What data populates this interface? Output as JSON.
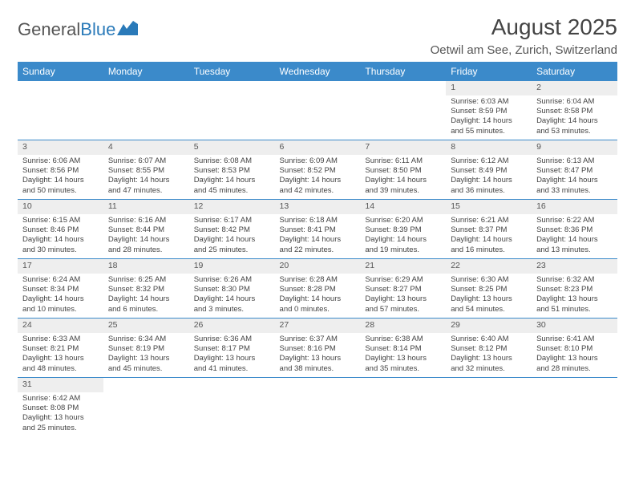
{
  "logo": {
    "text1": "General",
    "text2": "Blue"
  },
  "title": "August 2025",
  "subtitle": "Oetwil am See, Zurich, Switzerland",
  "colors": {
    "header_bg": "#3b8aca",
    "header_text": "#ffffff",
    "cell_divider": "#3b8aca",
    "daynum_bg": "#eeeeee",
    "text": "#444444",
    "logo_gray": "#555555",
    "logo_blue": "#2a7ab9"
  },
  "weekdays": [
    "Sunday",
    "Monday",
    "Tuesday",
    "Wednesday",
    "Thursday",
    "Friday",
    "Saturday"
  ],
  "column_width_pct": 14.28,
  "weeks": [
    [
      null,
      null,
      null,
      null,
      null,
      {
        "n": "1",
        "sr": "Sunrise: 6:03 AM",
        "ss": "Sunset: 8:59 PM",
        "dl1": "Daylight: 14 hours",
        "dl2": "and 55 minutes."
      },
      {
        "n": "2",
        "sr": "Sunrise: 6:04 AM",
        "ss": "Sunset: 8:58 PM",
        "dl1": "Daylight: 14 hours",
        "dl2": "and 53 minutes."
      }
    ],
    [
      {
        "n": "3",
        "sr": "Sunrise: 6:06 AM",
        "ss": "Sunset: 8:56 PM",
        "dl1": "Daylight: 14 hours",
        "dl2": "and 50 minutes."
      },
      {
        "n": "4",
        "sr": "Sunrise: 6:07 AM",
        "ss": "Sunset: 8:55 PM",
        "dl1": "Daylight: 14 hours",
        "dl2": "and 47 minutes."
      },
      {
        "n": "5",
        "sr": "Sunrise: 6:08 AM",
        "ss": "Sunset: 8:53 PM",
        "dl1": "Daylight: 14 hours",
        "dl2": "and 45 minutes."
      },
      {
        "n": "6",
        "sr": "Sunrise: 6:09 AM",
        "ss": "Sunset: 8:52 PM",
        "dl1": "Daylight: 14 hours",
        "dl2": "and 42 minutes."
      },
      {
        "n": "7",
        "sr": "Sunrise: 6:11 AM",
        "ss": "Sunset: 8:50 PM",
        "dl1": "Daylight: 14 hours",
        "dl2": "and 39 minutes."
      },
      {
        "n": "8",
        "sr": "Sunrise: 6:12 AM",
        "ss": "Sunset: 8:49 PM",
        "dl1": "Daylight: 14 hours",
        "dl2": "and 36 minutes."
      },
      {
        "n": "9",
        "sr": "Sunrise: 6:13 AM",
        "ss": "Sunset: 8:47 PM",
        "dl1": "Daylight: 14 hours",
        "dl2": "and 33 minutes."
      }
    ],
    [
      {
        "n": "10",
        "sr": "Sunrise: 6:15 AM",
        "ss": "Sunset: 8:46 PM",
        "dl1": "Daylight: 14 hours",
        "dl2": "and 30 minutes."
      },
      {
        "n": "11",
        "sr": "Sunrise: 6:16 AM",
        "ss": "Sunset: 8:44 PM",
        "dl1": "Daylight: 14 hours",
        "dl2": "and 28 minutes."
      },
      {
        "n": "12",
        "sr": "Sunrise: 6:17 AM",
        "ss": "Sunset: 8:42 PM",
        "dl1": "Daylight: 14 hours",
        "dl2": "and 25 minutes."
      },
      {
        "n": "13",
        "sr": "Sunrise: 6:18 AM",
        "ss": "Sunset: 8:41 PM",
        "dl1": "Daylight: 14 hours",
        "dl2": "and 22 minutes."
      },
      {
        "n": "14",
        "sr": "Sunrise: 6:20 AM",
        "ss": "Sunset: 8:39 PM",
        "dl1": "Daylight: 14 hours",
        "dl2": "and 19 minutes."
      },
      {
        "n": "15",
        "sr": "Sunrise: 6:21 AM",
        "ss": "Sunset: 8:37 PM",
        "dl1": "Daylight: 14 hours",
        "dl2": "and 16 minutes."
      },
      {
        "n": "16",
        "sr": "Sunrise: 6:22 AM",
        "ss": "Sunset: 8:36 PM",
        "dl1": "Daylight: 14 hours",
        "dl2": "and 13 minutes."
      }
    ],
    [
      {
        "n": "17",
        "sr": "Sunrise: 6:24 AM",
        "ss": "Sunset: 8:34 PM",
        "dl1": "Daylight: 14 hours",
        "dl2": "and 10 minutes."
      },
      {
        "n": "18",
        "sr": "Sunrise: 6:25 AM",
        "ss": "Sunset: 8:32 PM",
        "dl1": "Daylight: 14 hours",
        "dl2": "and 6 minutes."
      },
      {
        "n": "19",
        "sr": "Sunrise: 6:26 AM",
        "ss": "Sunset: 8:30 PM",
        "dl1": "Daylight: 14 hours",
        "dl2": "and 3 minutes."
      },
      {
        "n": "20",
        "sr": "Sunrise: 6:28 AM",
        "ss": "Sunset: 8:28 PM",
        "dl1": "Daylight: 14 hours",
        "dl2": "and 0 minutes."
      },
      {
        "n": "21",
        "sr": "Sunrise: 6:29 AM",
        "ss": "Sunset: 8:27 PM",
        "dl1": "Daylight: 13 hours",
        "dl2": "and 57 minutes."
      },
      {
        "n": "22",
        "sr": "Sunrise: 6:30 AM",
        "ss": "Sunset: 8:25 PM",
        "dl1": "Daylight: 13 hours",
        "dl2": "and 54 minutes."
      },
      {
        "n": "23",
        "sr": "Sunrise: 6:32 AM",
        "ss": "Sunset: 8:23 PM",
        "dl1": "Daylight: 13 hours",
        "dl2": "and 51 minutes."
      }
    ],
    [
      {
        "n": "24",
        "sr": "Sunrise: 6:33 AM",
        "ss": "Sunset: 8:21 PM",
        "dl1": "Daylight: 13 hours",
        "dl2": "and 48 minutes."
      },
      {
        "n": "25",
        "sr": "Sunrise: 6:34 AM",
        "ss": "Sunset: 8:19 PM",
        "dl1": "Daylight: 13 hours",
        "dl2": "and 45 minutes."
      },
      {
        "n": "26",
        "sr": "Sunrise: 6:36 AM",
        "ss": "Sunset: 8:17 PM",
        "dl1": "Daylight: 13 hours",
        "dl2": "and 41 minutes."
      },
      {
        "n": "27",
        "sr": "Sunrise: 6:37 AM",
        "ss": "Sunset: 8:16 PM",
        "dl1": "Daylight: 13 hours",
        "dl2": "and 38 minutes."
      },
      {
        "n": "28",
        "sr": "Sunrise: 6:38 AM",
        "ss": "Sunset: 8:14 PM",
        "dl1": "Daylight: 13 hours",
        "dl2": "and 35 minutes."
      },
      {
        "n": "29",
        "sr": "Sunrise: 6:40 AM",
        "ss": "Sunset: 8:12 PM",
        "dl1": "Daylight: 13 hours",
        "dl2": "and 32 minutes."
      },
      {
        "n": "30",
        "sr": "Sunrise: 6:41 AM",
        "ss": "Sunset: 8:10 PM",
        "dl1": "Daylight: 13 hours",
        "dl2": "and 28 minutes."
      }
    ],
    [
      {
        "n": "31",
        "sr": "Sunrise: 6:42 AM",
        "ss": "Sunset: 8:08 PM",
        "dl1": "Daylight: 13 hours",
        "dl2": "and 25 minutes."
      },
      null,
      null,
      null,
      null,
      null,
      null
    ]
  ]
}
